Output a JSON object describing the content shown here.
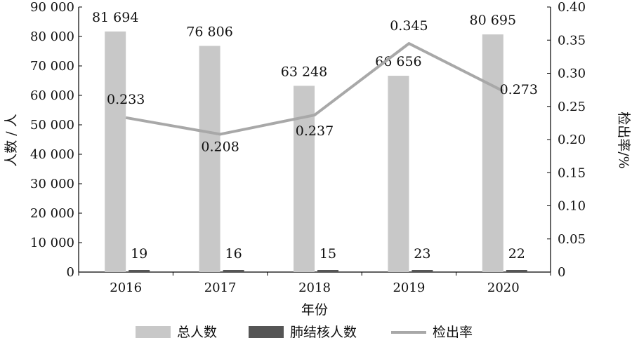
{
  "chart_data": {
    "type": "bar",
    "categories": [
      "2016",
      "2017",
      "2018",
      "2019",
      "2020"
    ],
    "xlabel": "年份",
    "ylabel_left": "人数 / 人",
    "ylabel_right": "检出率/%",
    "ylim_left": [
      0,
      90000
    ],
    "ylim_right": [
      0,
      0.4
    ],
    "yticks_left": [
      "0",
      "10 000",
      "20 000",
      "30 000",
      "40 000",
      "50 000",
      "60 000",
      "70 000",
      "80 000",
      "90 000"
    ],
    "yticks_right": [
      "0",
      "0.05",
      "0.10",
      "0.15",
      "0.20",
      "0.25",
      "0.30",
      "0.35",
      "0.40"
    ],
    "series": [
      {
        "name": "总人数",
        "kind": "bar",
        "axis": "left",
        "color": "#c8c8c8",
        "values": [
          81694,
          76806,
          63248,
          66656,
          80695
        ],
        "labels": [
          "81 694",
          "76 806",
          "63 248",
          "66 656",
          "80 695"
        ]
      },
      {
        "name": "肺结核人数",
        "kind": "bar",
        "axis": "left",
        "color": "#555555",
        "values": [
          19,
          16,
          15,
          23,
          22
        ],
        "labels": [
          "19",
          "16",
          "15",
          "23",
          "22"
        ]
      },
      {
        "name": "检出率",
        "kind": "line",
        "axis": "right",
        "color": "#a8a8a8",
        "values": [
          0.233,
          0.208,
          0.237,
          0.345,
          0.273
        ],
        "labels": [
          "0.233",
          "0.208",
          "0.237",
          "0.345",
          "0.273"
        ]
      }
    ],
    "grid": false,
    "legend_position": "bottom"
  }
}
